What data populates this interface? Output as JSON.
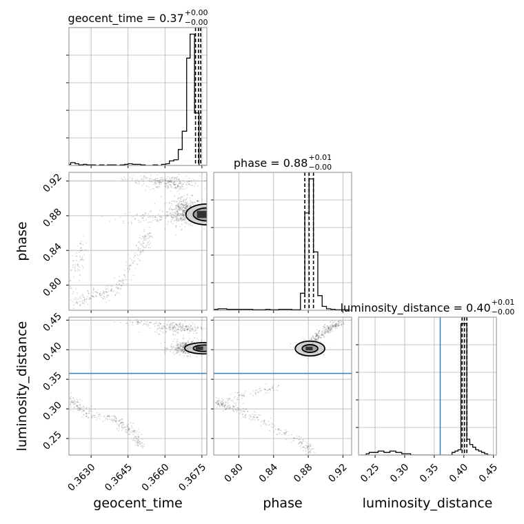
{
  "chart_data": {
    "type": "corner",
    "parameters": [
      "geocent_time",
      "phase",
      "luminosity_distance"
    ],
    "titles": [
      {
        "param": "geocent_time",
        "text": "geocent_time = 0.37",
        "sup": "+0.00",
        "sub": "−0.00"
      },
      {
        "param": "phase",
        "text": "phase = 0.88",
        "sup": "+0.01",
        "sub": "−0.00"
      },
      {
        "param": "luminosity_distance",
        "text": "luminosity_distance = 0.40",
        "sup": "+0.01",
        "sub": "−0.00"
      }
    ],
    "axis_labels": {
      "x": [
        "geocent_time",
        "phase",
        "luminosity_distance"
      ],
      "y": [
        "phase",
        "luminosity_distance"
      ]
    },
    "ranges": {
      "geocent_time": [
        0.3621,
        0.3677
      ],
      "phase": [
        0.771,
        0.93
      ],
      "luminosity_distance": [
        0.222,
        0.455
      ]
    },
    "ticks": {
      "geocent_time": [
        {
          "value": 0.363,
          "label": "0.3630"
        },
        {
          "value": 0.3645,
          "label": "0.3645"
        },
        {
          "value": 0.366,
          "label": "0.3660"
        },
        {
          "value": 0.3675,
          "label": "0.3675"
        }
      ],
      "phase": [
        {
          "value": 0.8,
          "label": "0.80"
        },
        {
          "value": 0.84,
          "label": "0.84"
        },
        {
          "value": 0.88,
          "label": "0.88"
        },
        {
          "value": 0.92,
          "label": "0.92"
        }
      ],
      "luminosity_distance": [
        {
          "value": 0.25,
          "label": "0.25"
        },
        {
          "value": 0.3,
          "label": "0.30"
        },
        {
          "value": 0.35,
          "label": "0.35"
        },
        {
          "value": 0.4,
          "label": "0.40"
        },
        {
          "value": 0.45,
          "label": "0.45"
        }
      ]
    },
    "quantiles": {
      "geocent_time": [
        0.36724,
        0.36736,
        0.36745
      ],
      "phase": [
        0.876,
        0.881,
        0.886
      ],
      "luminosity_distance": [
        0.397,
        0.401,
        0.405
      ]
    },
    "truths": {
      "luminosity_distance": 0.36
    },
    "hist_1d": {
      "geocent_time": {
        "bins": [
          0.36207,
          0.36217,
          0.36235,
          0.3625,
          0.36268,
          0.36282,
          0.363,
          0.36318,
          0.36334,
          0.36352,
          0.36366,
          0.36384,
          0.36402,
          0.36418,
          0.36436,
          0.3645,
          0.36468,
          0.36486,
          0.36502,
          0.3652,
          0.36534,
          0.36552,
          0.3657,
          0.36586,
          0.36604,
          0.36618,
          0.36636,
          0.36654,
          0.3667,
          0.36688,
          0.36702,
          0.3672,
          0.36738,
          0.3675,
          0.3677
        ],
        "counts": [
          2,
          5,
          3,
          1,
          2,
          1,
          1,
          0,
          1,
          0,
          1,
          1,
          0,
          1,
          2,
          3,
          2,
          2,
          1,
          0,
          0,
          1,
          0,
          2,
          3,
          8,
          10,
          28,
          60,
          188,
          230,
          92,
          0,
          0
        ]
      },
      "phase": {
        "bins": [
          0.771,
          0.776,
          0.781,
          0.786,
          0.791,
          0.796,
          0.801,
          0.806,
          0.811,
          0.816,
          0.821,
          0.826,
          0.831,
          0.836,
          0.841,
          0.846,
          0.851,
          0.856,
          0.861,
          0.866,
          0.871,
          0.876,
          0.881,
          0.886,
          0.891,
          0.896,
          0.901,
          0.906,
          0.911,
          0.916,
          0.921,
          0.926,
          0.931
        ],
        "counts": [
          2,
          3,
          3,
          2,
          2,
          2,
          2,
          2,
          2,
          1,
          1,
          1,
          2,
          1,
          1,
          2,
          2,
          2,
          1,
          1,
          35,
          200,
          270,
          120,
          30,
          8,
          3,
          2,
          1,
          1,
          1,
          0
        ]
      },
      "luminosity_distance": {
        "bins": [
          0.225,
          0.23,
          0.235,
          0.24,
          0.245,
          0.25,
          0.255,
          0.26,
          0.265,
          0.27,
          0.275,
          0.28,
          0.285,
          0.29,
          0.295,
          0.3,
          0.305,
          0.31,
          0.315,
          0.32,
          0.325,
          0.33,
          0.335,
          0.34,
          0.345,
          0.35,
          0.355,
          0.36,
          0.365,
          0.37,
          0.375,
          0.38,
          0.385,
          0.39,
          0.395,
          0.4,
          0.405,
          0.41,
          0.415,
          0.42,
          0.425,
          0.43,
          0.435,
          0.44,
          0.445,
          0.45
        ],
        "counts": [
          0,
          0,
          1,
          2,
          2,
          2,
          3,
          3,
          2,
          2,
          3,
          3,
          2,
          2,
          1,
          1,
          1,
          0,
          0,
          0,
          0,
          0,
          0,
          0,
          0,
          0,
          0,
          0,
          0,
          0,
          0,
          2,
          3,
          4,
          100,
          100,
          12,
          8,
          6,
          4,
          3,
          2,
          1,
          0,
          0
        ]
      }
    },
    "scatter_2d": [
      {
        "x": "geocent_time",
        "y": "phase",
        "blobs": [
          {
            "cx": 0.3668,
            "cy": 0.885,
            "sx": 0.00035,
            "sy": 0.008,
            "n": 450
          },
          {
            "cx": 0.3662,
            "cy": 0.918,
            "sx": 0.0006,
            "sy": 0.004,
            "n": 180
          },
          {
            "cx": 0.3655,
            "cy": 0.878,
            "sx": 0.0007,
            "sy": 0.004,
            "n": 80
          }
        ],
        "curves": [
          {
            "pts": [
              [
                0.3623,
                0.779
              ],
              [
                0.3628,
                0.786
              ],
              [
                0.3636,
                0.79
              ],
              [
                0.3642,
                0.8
              ],
              [
                0.3647,
                0.825
              ],
              [
                0.3651,
                0.845
              ],
              [
                0.3653,
                0.86
              ]
            ],
            "n": 260,
            "sx": 0.00012,
            "sy": 0.004
          },
          {
            "pts": [
              [
                0.3622,
                0.79
              ],
              [
                0.3624,
                0.815
              ],
              [
                0.3625,
                0.835
              ],
              [
                0.3626,
                0.851
              ]
            ],
            "n": 70,
            "sx": 0.00012,
            "sy": 0.006
          },
          {
            "pts": [
              [
                0.3643,
                0.923
              ],
              [
                0.3652,
                0.922
              ],
              [
                0.366,
                0.919
              ],
              [
                0.3667,
                0.912
              ]
            ],
            "n": 70,
            "sx": 0.00015,
            "sy": 0.002
          }
        ]
      },
      {
        "x": "geocent_time",
        "y": "luminosity_distance",
        "blobs": [
          {
            "cx": 0.3669,
            "cy": 0.403,
            "sx": 0.00035,
            "sy": 0.006,
            "n": 400
          },
          {
            "cx": 0.3666,
            "cy": 0.437,
            "sx": 0.0005,
            "sy": 0.005,
            "n": 200
          }
        ],
        "curves": [
          {
            "pts": [
              [
                0.3622,
                0.318
              ],
              [
                0.3624,
                0.305
              ],
              [
                0.363,
                0.29
              ],
              [
                0.364,
                0.282
              ],
              [
                0.3645,
                0.268
              ],
              [
                0.3648,
                0.255
              ],
              [
                0.365,
                0.24
              ]
            ],
            "n": 280,
            "sx": 0.00012,
            "sy": 0.004
          },
          {
            "pts": [
              [
                0.3645,
                0.446
              ],
              [
                0.3652,
                0.445
              ],
              [
                0.366,
                0.443
              ]
            ],
            "n": 50,
            "sx": 0.0003,
            "sy": 0.002
          }
        ]
      },
      {
        "x": "phase",
        "y": "luminosity_distance",
        "blobs": [
          {
            "cx": 0.881,
            "cy": 0.403,
            "sx": 0.007,
            "sy": 0.006,
            "n": 350
          }
        ],
        "curves": [
          {
            "pts": [
              [
                0.883,
                0.41
              ],
              [
                0.893,
                0.425
              ],
              [
                0.905,
                0.438
              ],
              [
                0.918,
                0.446
              ]
            ],
            "n": 250,
            "sx": 0.003,
            "sy": 0.003
          },
          {
            "pts": [
              [
                0.772,
                0.312
              ],
              [
                0.785,
                0.305
              ],
              [
                0.8,
                0.3
              ],
              [
                0.82,
                0.285
              ],
              [
                0.845,
                0.265
              ],
              [
                0.87,
                0.245
              ],
              [
                0.885,
                0.228
              ]
            ],
            "n": 260,
            "sx": 0.003,
            "sy": 0.004
          },
          {
            "pts": [
              [
                0.775,
                0.305
              ],
              [
                0.79,
                0.318
              ],
              [
                0.81,
                0.325
              ],
              [
                0.83,
                0.332
              ],
              [
                0.845,
                0.337
              ]
            ],
            "n": 90,
            "sx": 0.003,
            "sy": 0.003
          }
        ]
      }
    ],
    "contours_2d": [
      {
        "x": "geocent_time",
        "y": "phase",
        "rings": [
          {
            "cx": 0.3677,
            "cy": 0.8815,
            "rx": 0.00085,
            "ry": 0.012
          },
          {
            "cx": 0.3677,
            "cy": 0.8815,
            "rx": 0.00055,
            "ry": 0.0075
          }
        ],
        "core": {
          "cx": 0.3675,
          "cy": 0.8815,
          "rx": 0.0002,
          "ry": 0.004
        }
      },
      {
        "x": "geocent_time",
        "y": "luminosity_distance",
        "rings": [
          {
            "cx": 0.3676,
            "cy": 0.4025,
            "rx": 0.0008,
            "ry": 0.0095
          },
          {
            "cx": 0.3676,
            "cy": 0.4025,
            "rx": 0.00045,
            "ry": 0.0055
          }
        ],
        "core": {
          "cx": 0.3674,
          "cy": 0.4025,
          "rx": 0.00015,
          "ry": 0.003
        }
      },
      {
        "x": "phase",
        "y": "luminosity_distance",
        "rings": [
          {
            "cx": 0.882,
            "cy": 0.402,
            "rx": 0.017,
            "ry": 0.0125
          },
          {
            "cx": 0.882,
            "cy": 0.402,
            "rx": 0.009,
            "ry": 0.0065
          }
        ],
        "core": {
          "cx": 0.881,
          "cy": 0.402,
          "rx": 0.004,
          "ry": 0.003
        }
      }
    ],
    "grid": true,
    "colors": {
      "hist": "#000000",
      "truth": "#4682b4",
      "grid": "#b0b0b0",
      "contour_fill": "#cfcfcf",
      "contour_core": "#333333"
    }
  }
}
